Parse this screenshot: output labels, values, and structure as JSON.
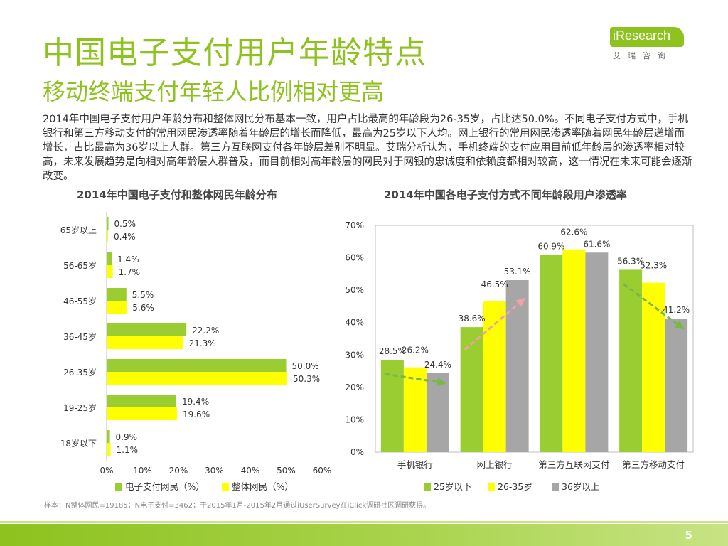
{
  "header": {
    "title": "中国电子支付用户年龄特点",
    "subtitle": "移动终端支付年轻人比例相对更高",
    "logo_text": "iResearch",
    "logo_sub": "艾瑞咨询"
  },
  "description": "2014年中国电子支付用户年龄分布和整体网民分布基本一致，用户占比最高的年龄段为26-35岁，占比达50.0%。不同电子支付方式中，手机银行和第三方移动支付的常用网民渗透率随着年龄层的增长而降低，最高为25岁以下人均。网上银行的常用网民渗透率随着网民年龄层递增而增长，占比最高为36岁以上人群。第三方互联网支付各年龄层差别不明显。艾瑞分析认为，手机终端的支付应用目前低年龄层的渗透率相对较高，未来发展趋势是向相对高年龄层人群普及，而目前相对高年龄层的网民对于网银的忠诚度和依赖度都相对较高，这一情况在未来可能会逐渐改变。",
  "source": "样本：N整体网民=19185；N电子支付=3462；于2015年1月-2015年2月通过iUserSurvey在iClick调研社区调研获得。",
  "page_number": "5",
  "colors": {
    "green": "#9acd32",
    "yellow": "#ffff00",
    "gray": "#a6a6a6",
    "brand": "#8dc21f"
  },
  "chart_data": [
    {
      "type": "bar",
      "orientation": "horizontal",
      "title": "2014年中国电子支付和整体网民年龄分布",
      "categories": [
        "65岁以上",
        "56-65岁",
        "46-55岁",
        "36-45岁",
        "26-35岁",
        "19-25岁",
        "18岁以下"
      ],
      "series": [
        {
          "name": "电子支付网民（%）",
          "values": [
            0.5,
            1.4,
            5.5,
            22.2,
            50.0,
            19.4,
            0.9
          ],
          "labels": [
            "0.5%",
            "1.4%",
            "5.5%",
            "22.2%",
            "50.0%",
            "19.4%",
            "0.9%"
          ],
          "color": "#9acd32"
        },
        {
          "name": "整体网民（%）",
          "values": [
            0.4,
            1.7,
            5.6,
            21.3,
            50.3,
            19.6,
            1.1
          ],
          "labels": [
            "0.4%",
            "1.7%",
            "5.6%",
            "21.3%",
            "50.3%",
            "19.6%",
            "1.1%"
          ],
          "color": "#ffff00"
        }
      ],
      "xlim": [
        0,
        60
      ],
      "xticks": [
        "0%",
        "10%",
        "20%",
        "30%",
        "40%",
        "50%",
        "60%"
      ],
      "legend": "bottom"
    },
    {
      "type": "bar",
      "title": "2014年中国各电子支付方式不同年龄段用户渗透率",
      "categories": [
        "手机银行",
        "网上银行",
        "第三方互联网支付",
        "第三方移动支付"
      ],
      "series": [
        {
          "name": "25岁以下",
          "values": [
            28.5,
            38.6,
            60.9,
            56.3
          ],
          "labels": [
            "28.5%",
            "38.6%",
            "60.9%",
            "56.3%"
          ],
          "color": "#9acd32"
        },
        {
          "name": "26-35岁",
          "values": [
            26.2,
            46.5,
            62.6,
            52.3
          ],
          "labels": [
            "26.2%",
            "46.5%",
            "62.6%",
            "52.3%"
          ],
          "color": "#ffff00"
        },
        {
          "name": "36岁以上",
          "values": [
            24.4,
            53.1,
            61.6,
            41.2
          ],
          "labels": [
            "24.4%",
            "53.1%",
            "61.6%",
            "41.2%"
          ],
          "color": "#a6a6a6"
        }
      ],
      "ylim": [
        0,
        70
      ],
      "yticks": [
        "0%",
        "10%",
        "20%",
        "30%",
        "40%",
        "50%",
        "60%",
        "70%"
      ],
      "legend": "bottom",
      "trend_arrows": [
        "down",
        "up",
        "none",
        "down"
      ]
    }
  ]
}
